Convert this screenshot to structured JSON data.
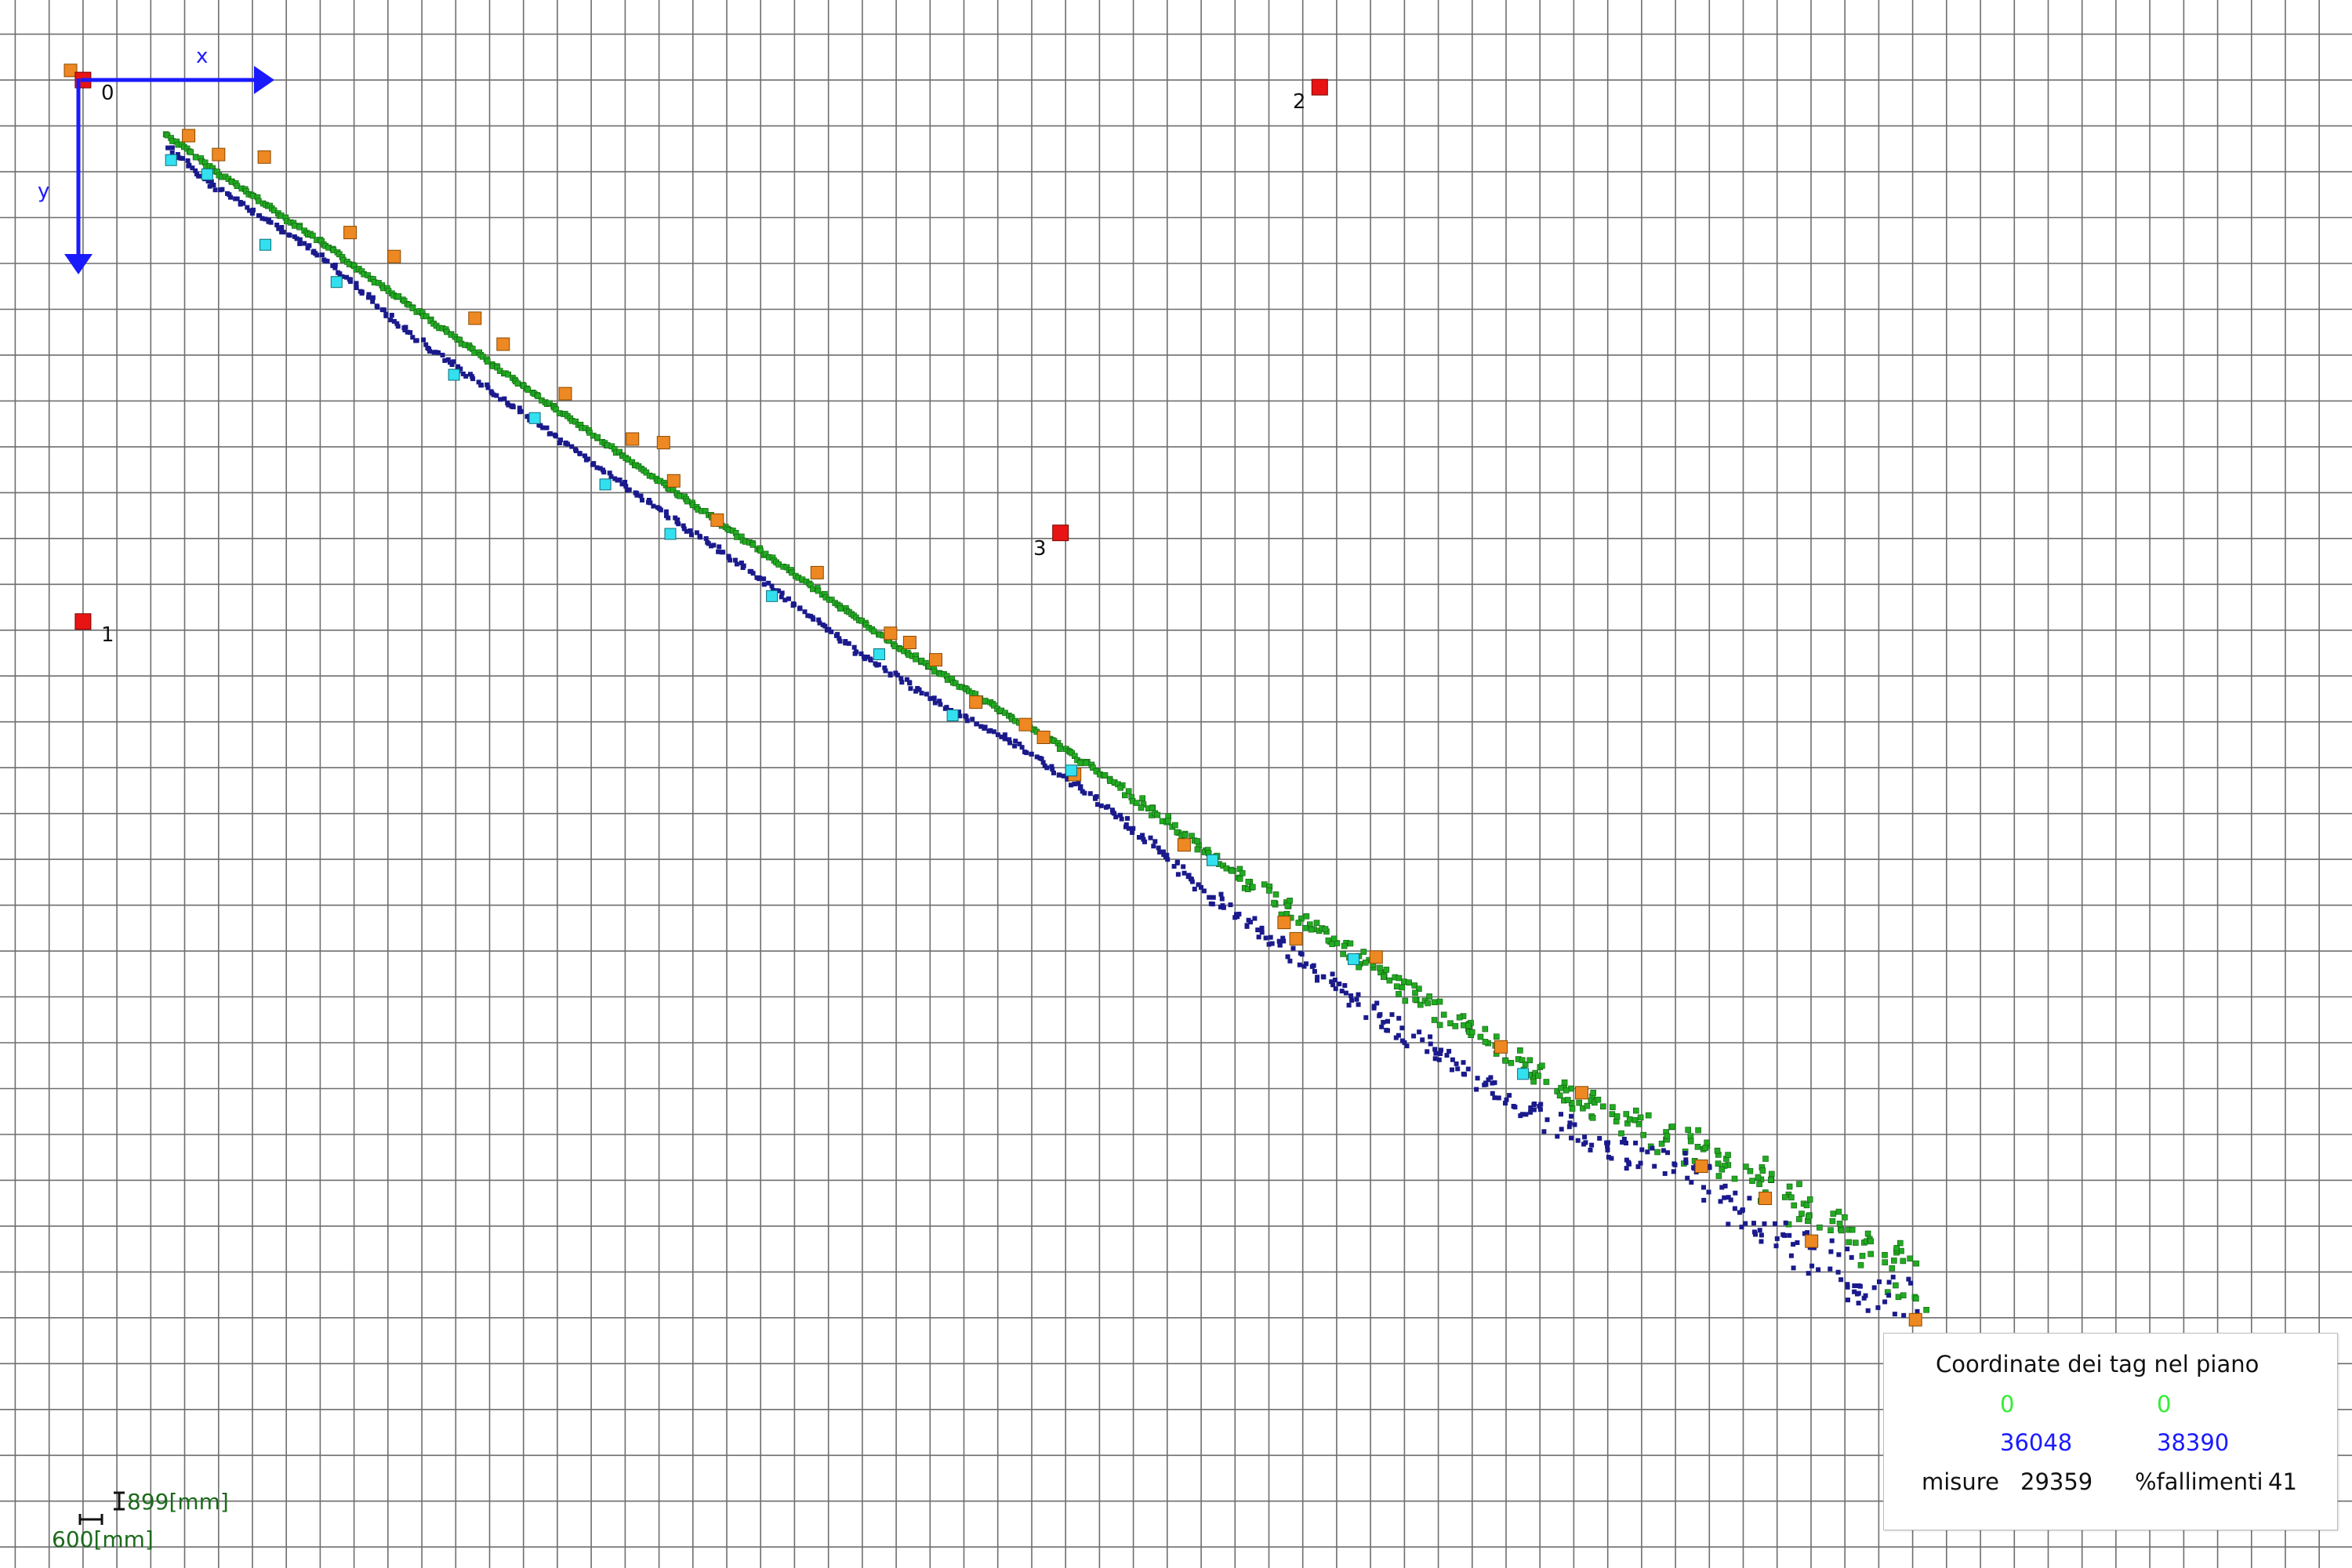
{
  "axes": {
    "x_label": "x",
    "y_label": "y",
    "color": "#1a1aff"
  },
  "anchors": [
    {
      "id": "0",
      "x_mm": 0,
      "y_mm": 0
    },
    {
      "id": "1",
      "x_mm": 0,
      "y_mm": 10620
    },
    {
      "id": "2",
      "x_mm": 21900,
      "y_mm": 140
    },
    {
      "id": "3",
      "x_mm": 17310,
      "y_mm": 8880
    }
  ],
  "scale_bar": {
    "vertical_label": "899[mm]",
    "horizontal_label": "600[mm]",
    "vertical_mm": 899,
    "horizontal_mm": 600,
    "color": "#1b6b1b"
  },
  "info_box": {
    "title": "Coordinate dei tag nel piano",
    "green_values": [
      "0",
      "0"
    ],
    "blue_values": [
      "36048",
      "38390"
    ],
    "measures_label": "misure",
    "measures_value": "29359",
    "failures_label": "%fallimenti",
    "failures_value": "41"
  },
  "chart_data": {
    "type": "scatter",
    "title": "",
    "xlabel": "x",
    "ylabel": "y",
    "units": "mm",
    "y_axis_direction": "down",
    "grid": true,
    "xlim": [
      -1470,
      40180
    ],
    "ylim": [
      -1570,
      29180
    ],
    "series": [
      {
        "kind": "track",
        "color": "#22aa22",
        "x": [
          1470,
          2200,
          4000,
          6000,
          8400,
          10500,
          12300,
          14300,
          15800,
          17100,
          18300,
          20600,
          23300,
          25900,
          27900,
          29100,
          30000,
          32000,
          32600
        ],
        "y": [
          1060,
          1670,
          3010,
          4590,
          6470,
          8090,
          9460,
          11020,
          12070,
          12920,
          13810,
          15690,
          17760,
          19620,
          20700,
          21230,
          21790,
          23160,
          23810
        ]
      },
      {
        "kind": "track",
        "color": "#1a1a8c",
        "x": [
          1530,
          2100,
          4100,
          5900,
          8200,
          10400,
          12000,
          13800,
          15400,
          16400,
          17500,
          18200,
          20000,
          22400,
          25000,
          27000,
          28700,
          29100,
          30400,
          31500,
          32400
        ],
        "y": [
          1320,
          1930,
          3350,
          5070,
          6860,
          8570,
          9790,
          11280,
          12380,
          12920,
          13760,
          14290,
          16030,
          17900,
          19830,
          20930,
          21490,
          22020,
          22840,
          23690,
          24000
        ]
      },
      {
        "kind": "markers",
        "color": "#ee8822",
        "x": [
          -220,
          1870,
          2400,
          3210,
          4730,
          5510,
          6940,
          7440,
          8540,
          9730,
          10280,
          10460,
          11230,
          13000,
          14300,
          14640,
          15100,
          15810,
          16690,
          17010,
          17560,
          19500,
          21270,
          21480,
          22900,
          25110,
          26540,
          28660,
          29790,
          30610,
          32450
        ],
        "y": [
          -190,
          1090,
          1460,
          1510,
          2990,
          3460,
          4670,
          5180,
          6150,
          7040,
          7110,
          7860,
          8630,
          9660,
          10850,
          11030,
          11370,
          12200,
          12640,
          12890,
          13620,
          15000,
          16520,
          16840,
          17200,
          18960,
          19860,
          21300,
          21930,
          22770,
          24310
        ]
      },
      {
        "kind": "markers",
        "color": "#33e0f0",
        "x": [
          1560,
          2200,
          3230,
          4490,
          6570,
          8000,
          9250,
          10400,
          12200,
          14100,
          15400,
          17500,
          20000,
          22500,
          25500
        ],
        "y": [
          1570,
          1850,
          3230,
          3960,
          5780,
          6630,
          7930,
          8900,
          10120,
          11260,
          12460,
          13540,
          15300,
          17240,
          19490
        ]
      },
      {
        "kind": "anchors",
        "color": "#e81414",
        "x": [
          0,
          0,
          21900,
          17310
        ],
        "y": [
          0,
          10620,
          140,
          8880
        ]
      }
    ]
  }
}
